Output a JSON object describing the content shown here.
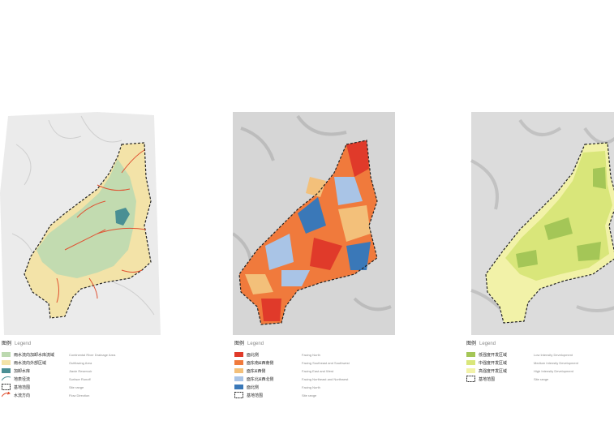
{
  "panels": [
    {
      "legend_title": "图例",
      "legend_title_en": "Legend",
      "items": [
        {
          "zh": "雨水流向加卸水库流域",
          "en": "Continental River Drainage Area",
          "color": "#bcd9b0",
          "kind": "swatch"
        },
        {
          "zh": "雨水流向外部区域",
          "en": "Outflowing Area",
          "color": "#f3e3a8",
          "kind": "swatch"
        },
        {
          "zh": "加卸水库",
          "en": "Jiaxie Reservoir",
          "color": "#4a8f94",
          "kind": "swatch"
        },
        {
          "zh": "地表径流",
          "en": "Surface Runoff",
          "color": "#4a8f94",
          "kind": "runoff"
        },
        {
          "zh": "基地范围",
          "en": "Site range",
          "color": "#222222",
          "kind": "site"
        },
        {
          "zh": "水流方向",
          "en": "Flow Direction",
          "color": "#e05030",
          "kind": "flow"
        }
      ]
    },
    {
      "legend_title": "图例",
      "legend_title_en": "Legend",
      "items": [
        {
          "zh": "面北侧",
          "en": "Facing North",
          "color": "#e03a2a",
          "kind": "swatch"
        },
        {
          "zh": "面东南&西南侧",
          "en": "Facing Southeast and Southwest",
          "color": "#f07a3c",
          "kind": "swatch"
        },
        {
          "zh": "面东&西侧",
          "en": "Facing East and West",
          "color": "#f3c07a",
          "kind": "swatch"
        },
        {
          "zh": "面东北&西北侧",
          "en": "Facing Northeast and Northwest",
          "color": "#a9c4e6",
          "kind": "swatch"
        },
        {
          "zh": "面北侧",
          "en": "Facing North",
          "color": "#3a78b8",
          "kind": "swatch"
        },
        {
          "zh": "基地范围",
          "en": "Site range",
          "color": "#222222",
          "kind": "site"
        }
      ]
    },
    {
      "legend_title": "图例",
      "legend_title_en": "Legend",
      "items": [
        {
          "zh": "低强度开发区域",
          "en": "Low Intensity Development",
          "color": "#a4c657",
          "kind": "swatch"
        },
        {
          "zh": "中强度开发区域",
          "en": "Medium Intensity Development",
          "color": "#d9e67a",
          "kind": "swatch"
        },
        {
          "zh": "高强度开发区域",
          "en": "High Intensity Development",
          "color": "#f2f2a8",
          "kind": "swatch"
        },
        {
          "zh": "基地范围",
          "en": "Site range",
          "color": "#222222",
          "kind": "site"
        }
      ]
    }
  ],
  "colors": {
    "terrain": "#e6e6e6",
    "terrain_dark": "#c8c8c8",
    "site_line": "#222222",
    "arrow": "#e05030"
  }
}
